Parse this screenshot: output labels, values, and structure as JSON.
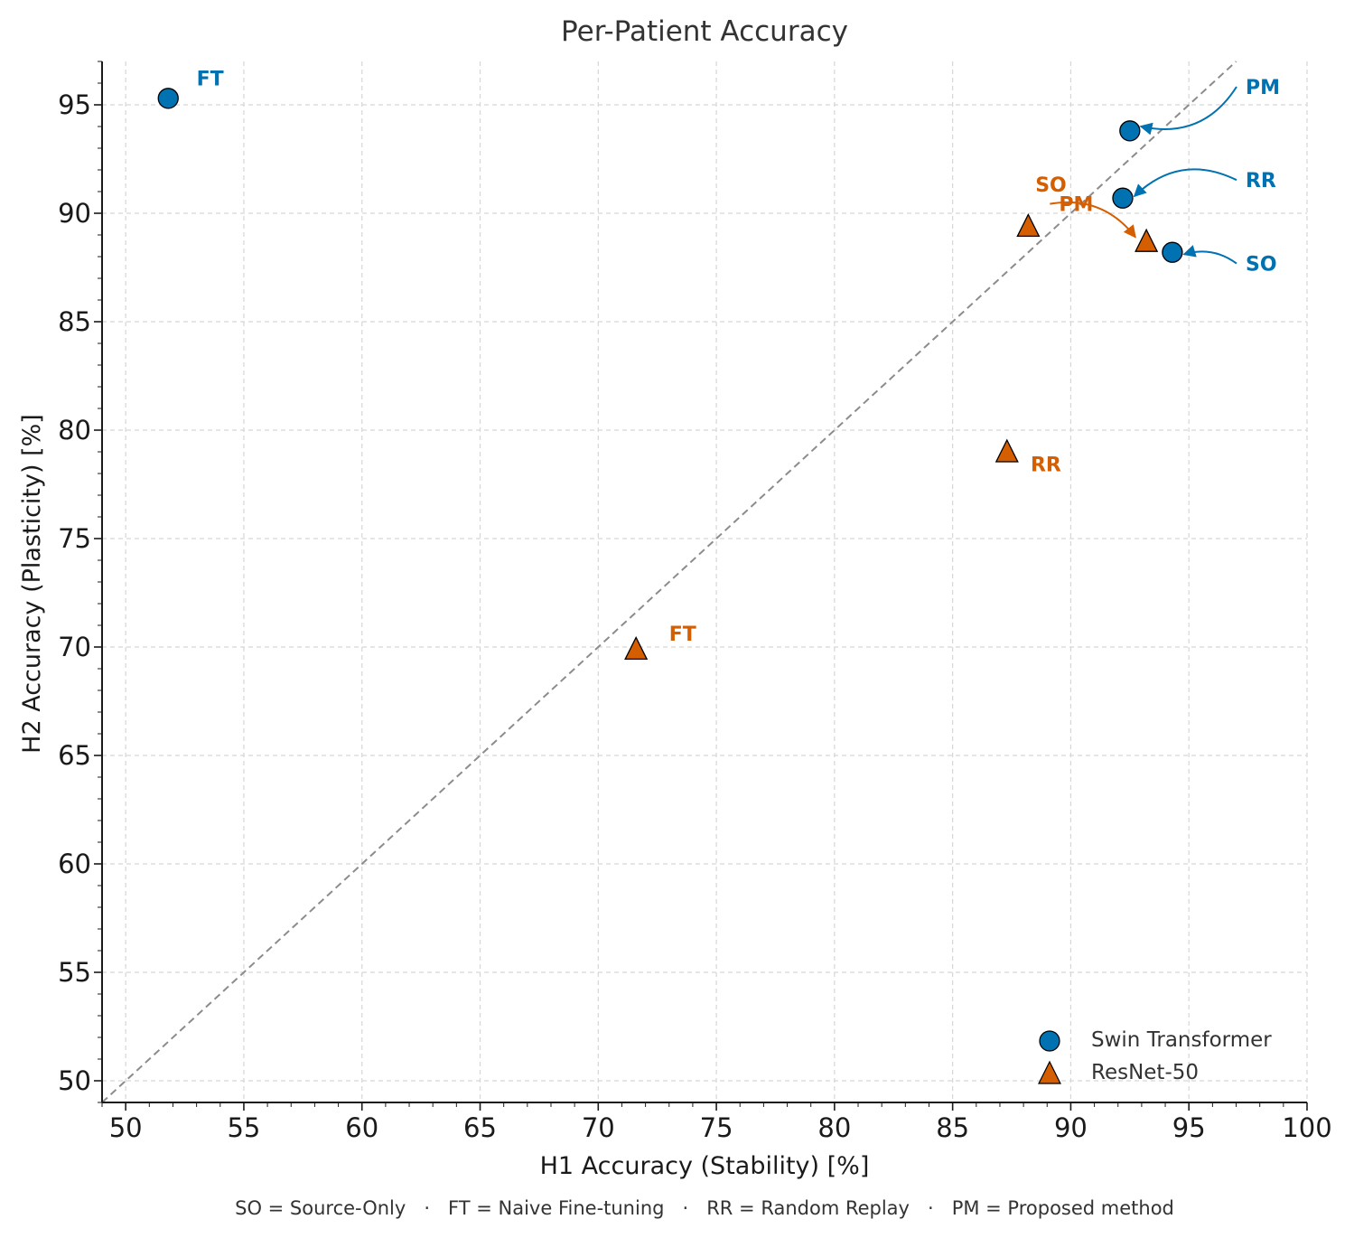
{
  "chart_data": {
    "type": "scatter",
    "title": "Per-Patient Accuracy",
    "xlabel": "H1 Accuracy (Stability) [%]",
    "ylabel": "H2 Accuracy (Plasticity) [%]",
    "xlim": [
      49,
      100
    ],
    "ylim": [
      49,
      97
    ],
    "xticks": [
      50,
      55,
      60,
      65,
      70,
      75,
      80,
      85,
      90,
      95,
      100
    ],
    "yticks": [
      50,
      55,
      60,
      65,
      70,
      75,
      80,
      85,
      90,
      95
    ],
    "grid": true,
    "diagonal": {
      "from": [
        49,
        49
      ],
      "to": [
        97,
        97
      ],
      "style": "dashed",
      "color": "#8c8c8c"
    },
    "series": [
      {
        "name": "Swin Transformer",
        "marker": "circle",
        "color": "#0072b2",
        "points": [
          {
            "label": "SO",
            "x": 94.3,
            "y": 88.2
          },
          {
            "label": "FT",
            "x": 51.8,
            "y": 95.3
          },
          {
            "label": "RR",
            "x": 92.2,
            "y": 90.7
          },
          {
            "label": "PM",
            "x": 92.5,
            "y": 93.8
          }
        ]
      },
      {
        "name": "ResNet-50",
        "marker": "triangle",
        "color": "#d55e00",
        "points": [
          {
            "label": "SO",
            "x": 88.2,
            "y": 89.4
          },
          {
            "label": "FT",
            "x": 71.6,
            "y": 69.9
          },
          {
            "label": "RR",
            "x": 87.3,
            "y": 79.0
          },
          {
            "label": "PM",
            "x": 93.2,
            "y": 88.7
          }
        ]
      }
    ],
    "annotations": [
      {
        "series": 0,
        "point": 1,
        "text": "FT",
        "tx": 53.0,
        "ty": 95.9,
        "arrow": false
      },
      {
        "series": 0,
        "point": 3,
        "text": "PM",
        "tx": 97.4,
        "ty": 95.5,
        "arrow": true,
        "rad": 0.35
      },
      {
        "series": 0,
        "point": 2,
        "text": "RR",
        "tx": 97.4,
        "ty": 91.2,
        "arrow": true,
        "rad": -0.35
      },
      {
        "series": 0,
        "point": 0,
        "text": "SO",
        "tx": 97.4,
        "ty": 87.35,
        "arrow": true,
        "rad": -0.25
      },
      {
        "series": 1,
        "point": 0,
        "text": "SO",
        "tx": 88.5,
        "ty": 91.0,
        "arrow": false
      },
      {
        "series": 1,
        "point": 3,
        "text": "PM",
        "tx": 89.5,
        "ty": 90.1,
        "arrow": true,
        "rad": 0.3
      },
      {
        "series": 1,
        "point": 2,
        "text": "RR",
        "tx": 88.3,
        "ty": 78.1,
        "arrow": false
      },
      {
        "series": 1,
        "point": 1,
        "text": "FT",
        "tx": 73.0,
        "ty": 70.3,
        "arrow": false
      }
    ],
    "legend": {
      "placement": "lower-right"
    },
    "footnote": "SO = Source-Only   ·   FT = Naive Fine-tuning   ·   RR = Random Replay   ·   PM = Proposed method"
  }
}
